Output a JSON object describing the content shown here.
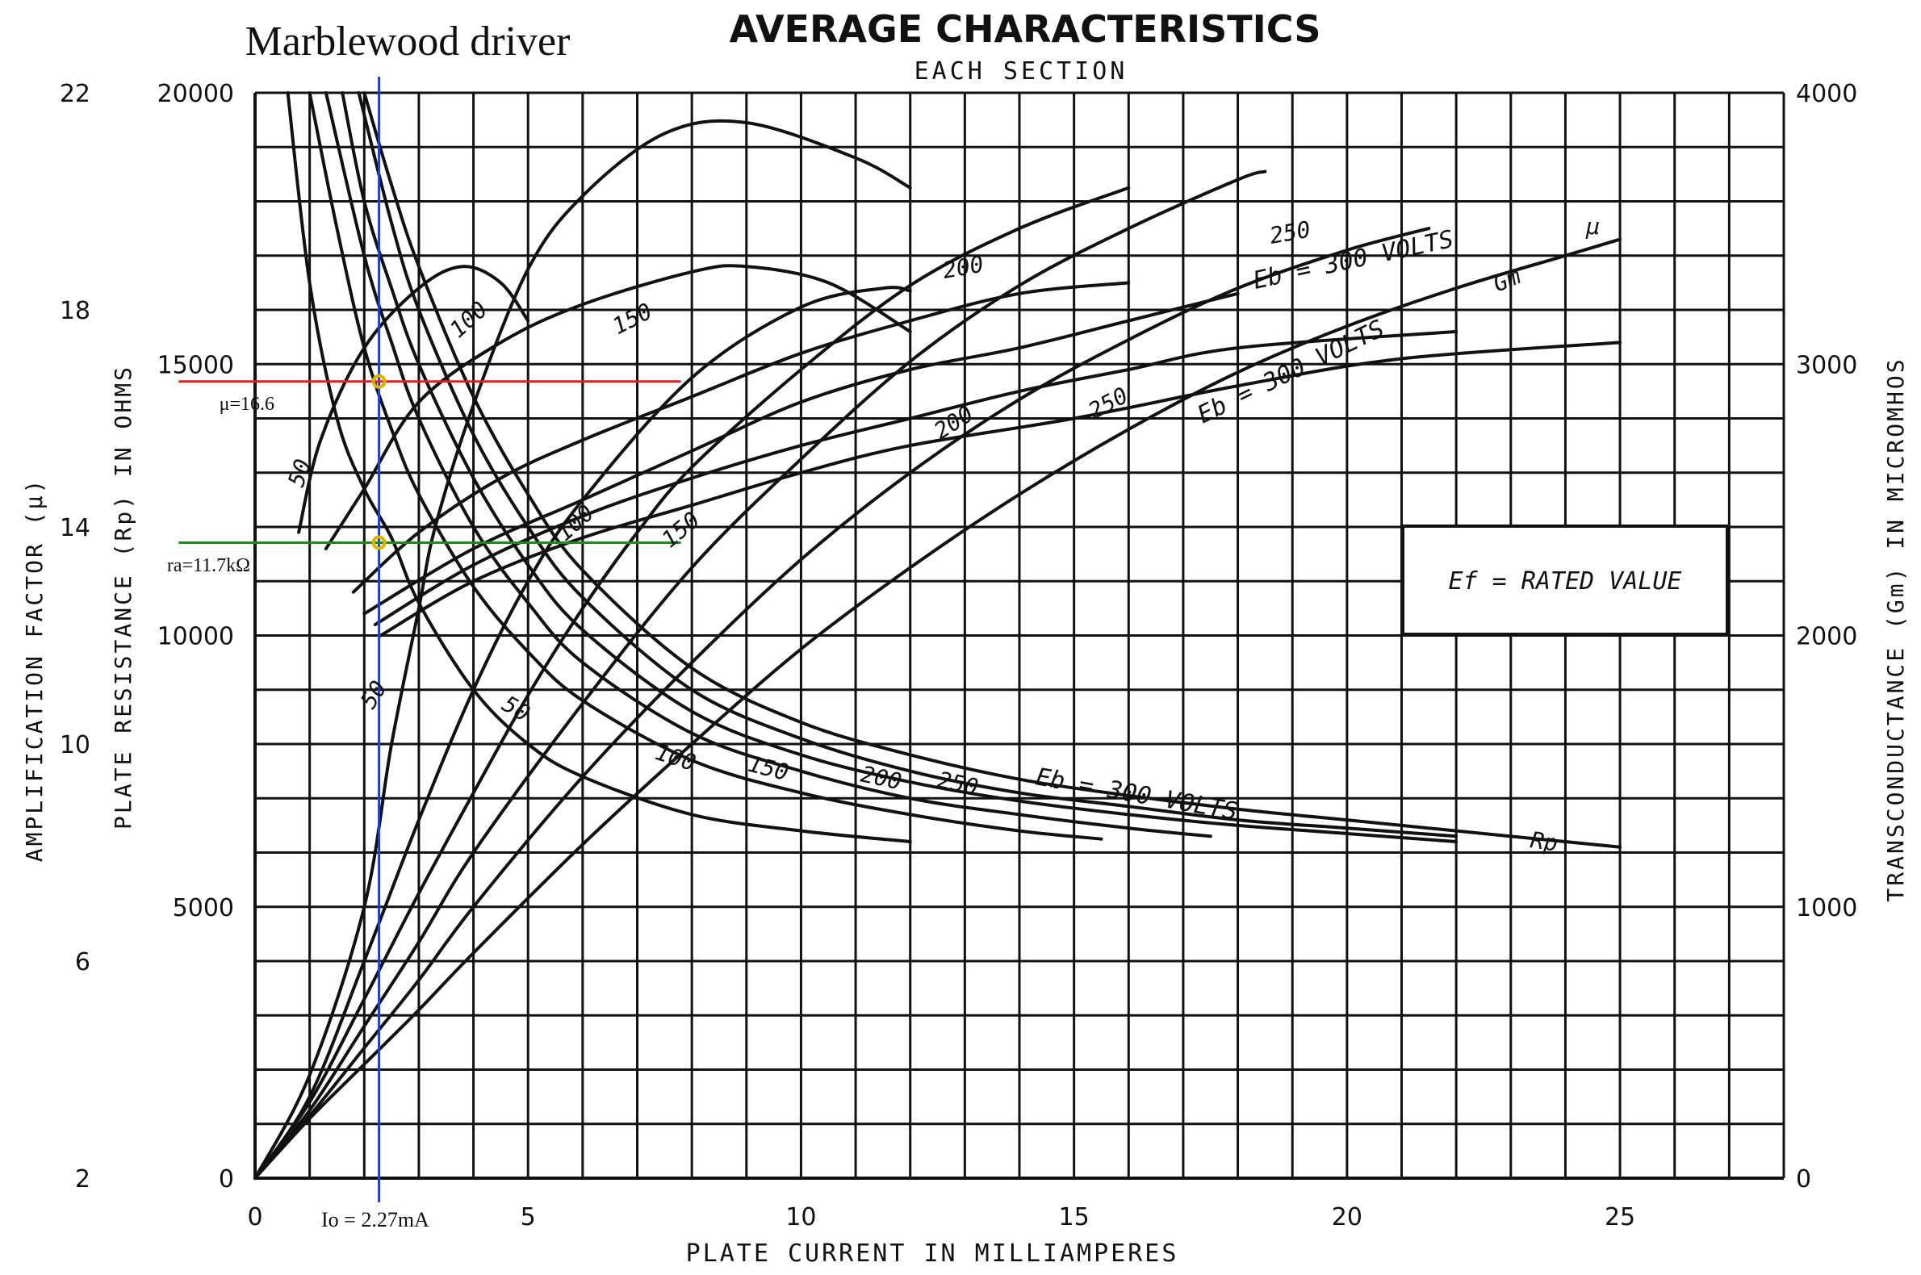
{
  "chart_data": {
    "type": "line",
    "title": "AVERAGE CHARACTERISTICS",
    "subtitle": "EACH SECTION",
    "annotation_title": "Marblewood driver",
    "xlabel": "PLATE CURRENT IN MILLIAMPERES",
    "ylabel_mu": "AMPLIFICATION FACTOR (μ)",
    "ylabel_rp": "PLATE RESISTANCE (Rp) IN OHMS",
    "ylabel_gm": "TRANSCONDUCTANCE (Gm) IN MICROMHOS",
    "xlim": [
      0,
      28
    ],
    "ylim_rp": [
      0,
      20000
    ],
    "ylim_mu": [
      2,
      22
    ],
    "ylim_gm": [
      0,
      4000
    ],
    "grid": true,
    "x_ticks": [
      "0",
      "5",
      "10",
      "15",
      "20",
      "25"
    ],
    "rp_ticks": [
      "0",
      "5000",
      "10000",
      "15000",
      "20000"
    ],
    "mu_ticks": [
      "2",
      "6",
      "10",
      "14",
      "18",
      "22"
    ],
    "gm_ticks": [
      "0",
      "1000",
      "2000",
      "3000",
      "4000"
    ],
    "condition_box": "Ef = RATED VALUE",
    "family_labels": {
      "mu": "μ",
      "gm": "Gm",
      "rp": "Rp",
      "mu_eb": "Eb = 300 VOLTS",
      "gm_eb": "Eb = 300 VOLTS",
      "rp_eb": "Eb = 300 VOLTS"
    },
    "series": [
      {
        "family": "mu",
        "label": "50",
        "points": [
          [
            0.8,
            13.9
          ],
          [
            1.2,
            15.6
          ],
          [
            2,
            17.3
          ],
          [
            3,
            18.4
          ],
          [
            3.8,
            18.8
          ],
          [
            4.5,
            18.5
          ],
          [
            5,
            17.8
          ]
        ]
      },
      {
        "family": "mu",
        "label": "100",
        "points": [
          [
            1.3,
            13.6
          ],
          [
            2,
            14.7
          ],
          [
            3,
            16.3
          ],
          [
            4.5,
            17.4
          ],
          [
            6,
            18.1
          ],
          [
            8,
            18.7
          ],
          [
            9,
            18.8
          ],
          [
            10.5,
            18.5
          ],
          [
            12,
            17.6
          ]
        ]
      },
      {
        "family": "mu",
        "label": "150",
        "points": [
          [
            1.8,
            12.8
          ],
          [
            3,
            13.9
          ],
          [
            4.5,
            14.9
          ],
          [
            6,
            15.6
          ],
          [
            8,
            16.4
          ],
          [
            10,
            17.2
          ],
          [
            12,
            17.8
          ],
          [
            14,
            18.3
          ],
          [
            16,
            18.5
          ]
        ]
      },
      {
        "family": "mu",
        "label": "200",
        "points": [
          [
            2,
            12.4
          ],
          [
            4,
            13.6
          ],
          [
            6,
            14.5
          ],
          [
            8,
            15.4
          ],
          [
            10,
            16.3
          ],
          [
            12,
            16.9
          ],
          [
            14,
            17.3
          ],
          [
            16,
            17.8
          ],
          [
            18,
            18.3
          ]
        ]
      },
      {
        "family": "mu",
        "label": "250",
        "points": [
          [
            2.2,
            12.2
          ],
          [
            4,
            13.3
          ],
          [
            6,
            14.2
          ],
          [
            8,
            14.9
          ],
          [
            10,
            15.5
          ],
          [
            12,
            16.0
          ],
          [
            14,
            16.5
          ],
          [
            16,
            16.9
          ],
          [
            18,
            17.3
          ],
          [
            22,
            17.6
          ]
        ]
      },
      {
        "family": "mu",
        "label": "300",
        "points": [
          [
            2.3,
            12.0
          ],
          [
            4,
            13.0
          ],
          [
            6,
            13.8
          ],
          [
            8,
            14.4
          ],
          [
            10,
            15.0
          ],
          [
            12,
            15.5
          ],
          [
            15,
            16.0
          ],
          [
            18,
            16.6
          ],
          [
            21,
            17.1
          ],
          [
            25,
            17.4
          ]
        ]
      },
      {
        "family": "gm",
        "label": "50",
        "points": [
          [
            0,
            0
          ],
          [
            1,
            380
          ],
          [
            2,
            1000
          ],
          [
            2.5,
            1600
          ],
          [
            3,
            2100
          ],
          [
            3.3,
            2400
          ],
          [
            4,
            2850
          ],
          [
            5,
            3350
          ],
          [
            6,
            3620
          ],
          [
            7.5,
            3850
          ],
          [
            9,
            3890
          ],
          [
            11,
            3760
          ],
          [
            12,
            3650
          ]
        ]
      },
      {
        "family": "gm",
        "label": "100",
        "points": [
          [
            0,
            0
          ],
          [
            1,
            300
          ],
          [
            2,
            800
          ],
          [
            3,
            1320
          ],
          [
            4,
            1800
          ],
          [
            5,
            2200
          ],
          [
            6,
            2500
          ],
          [
            8,
            2950
          ],
          [
            10,
            3210
          ],
          [
            11.5,
            3280
          ],
          [
            12,
            3270
          ]
        ]
      },
      {
        "family": "gm",
        "label": "150",
        "points": [
          [
            0,
            0
          ],
          [
            1,
            280
          ],
          [
            2,
            660
          ],
          [
            3,
            1050
          ],
          [
            4,
            1420
          ],
          [
            5,
            1780
          ],
          [
            6,
            2100
          ],
          [
            7,
            2380
          ],
          [
            8,
            2620
          ],
          [
            10,
            2980
          ],
          [
            12,
            3290
          ],
          [
            14,
            3500
          ],
          [
            16,
            3650
          ]
        ]
      },
      {
        "family": "gm",
        "label": "200",
        "points": [
          [
            0,
            0
          ],
          [
            1,
            250
          ],
          [
            2,
            560
          ],
          [
            3,
            870
          ],
          [
            4,
            1200
          ],
          [
            6,
            1750
          ],
          [
            8,
            2250
          ],
          [
            10,
            2650
          ],
          [
            12,
            3010
          ],
          [
            14,
            3290
          ],
          [
            16,
            3500
          ],
          [
            18,
            3680
          ],
          [
            18.5,
            3710
          ]
        ]
      },
      {
        "family": "gm",
        "label": "250",
        "points": [
          [
            0,
            0
          ],
          [
            1,
            230
          ],
          [
            2,
            480
          ],
          [
            3,
            730
          ],
          [
            4,
            1000
          ],
          [
            6,
            1480
          ],
          [
            8,
            1900
          ],
          [
            10,
            2280
          ],
          [
            12,
            2600
          ],
          [
            14,
            2870
          ],
          [
            16,
            3090
          ],
          [
            18,
            3280
          ],
          [
            20,
            3420
          ],
          [
            21.5,
            3500
          ]
        ]
      },
      {
        "family": "gm",
        "label": "300",
        "points": [
          [
            0,
            0
          ],
          [
            1,
            220
          ],
          [
            2,
            420
          ],
          [
            3,
            620
          ],
          [
            4,
            830
          ],
          [
            6,
            1230
          ],
          [
            8,
            1600
          ],
          [
            10,
            1950
          ],
          [
            12,
            2250
          ],
          [
            14,
            2520
          ],
          [
            16,
            2760
          ],
          [
            18,
            2970
          ],
          [
            20,
            3140
          ],
          [
            22,
            3280
          ],
          [
            24,
            3400
          ],
          [
            25,
            3460
          ]
        ]
      },
      {
        "family": "rp",
        "label": "50",
        "points": [
          [
            0.6,
            20000
          ],
          [
            1,
            16500
          ],
          [
            1.5,
            14000
          ],
          [
            2,
            12700
          ],
          [
            2.5,
            11800
          ],
          [
            3,
            10600
          ],
          [
            4,
            9000
          ],
          [
            5,
            8000
          ],
          [
            6,
            7400
          ],
          [
            8,
            6700
          ],
          [
            10,
            6400
          ],
          [
            12,
            6200
          ]
        ]
      },
      {
        "family": "rp",
        "label": "100",
        "points": [
          [
            1,
            20000
          ],
          [
            1.5,
            17500
          ],
          [
            2,
            15300
          ],
          [
            2.5,
            13800
          ],
          [
            3,
            12600
          ],
          [
            4,
            10900
          ],
          [
            5,
            9700
          ],
          [
            6,
            8800
          ],
          [
            8,
            7700
          ],
          [
            10,
            7100
          ],
          [
            12,
            6700
          ],
          [
            14,
            6400
          ],
          [
            15.5,
            6250
          ]
        ]
      },
      {
        "family": "rp",
        "label": "150",
        "points": [
          [
            1.3,
            20000
          ],
          [
            2,
            17000
          ],
          [
            2.5,
            15400
          ],
          [
            3,
            14000
          ],
          [
            4,
            12000
          ],
          [
            5,
            10600
          ],
          [
            6,
            9500
          ],
          [
            8,
            8200
          ],
          [
            10,
            7500
          ],
          [
            12,
            7000
          ],
          [
            14,
            6700
          ],
          [
            16,
            6450
          ],
          [
            17.5,
            6300
          ]
        ]
      },
      {
        "family": "rp",
        "label": "200",
        "points": [
          [
            1.6,
            20000
          ],
          [
            2,
            18000
          ],
          [
            2.5,
            16400
          ],
          [
            3,
            15000
          ],
          [
            4,
            12900
          ],
          [
            5,
            11300
          ],
          [
            6,
            10100
          ],
          [
            8,
            8600
          ],
          [
            10,
            7800
          ],
          [
            12,
            7300
          ],
          [
            14,
            6950
          ],
          [
            16,
            6700
          ],
          [
            18,
            6500
          ],
          [
            20,
            6350
          ],
          [
            22,
            6200
          ]
        ]
      },
      {
        "family": "rp",
        "label": "250",
        "points": [
          [
            1.9,
            20000
          ],
          [
            2.5,
            17600
          ],
          [
            3,
            16000
          ],
          [
            4,
            13700
          ],
          [
            5,
            12000
          ],
          [
            6,
            10700
          ],
          [
            8,
            9000
          ],
          [
            10,
            8100
          ],
          [
            12,
            7500
          ],
          [
            14,
            7100
          ],
          [
            16,
            6850
          ],
          [
            18,
            6600
          ],
          [
            20,
            6450
          ],
          [
            22,
            6300
          ]
        ]
      },
      {
        "family": "rp",
        "label": "300",
        "points": [
          [
            2,
            20000
          ],
          [
            2.5,
            18300
          ],
          [
            3,
            16800
          ],
          [
            4,
            14400
          ],
          [
            5,
            12600
          ],
          [
            6,
            11200
          ],
          [
            8,
            9400
          ],
          [
            10,
            8400
          ],
          [
            12,
            7800
          ],
          [
            14,
            7350
          ],
          [
            16,
            7050
          ],
          [
            18,
            6800
          ],
          [
            20,
            6600
          ],
          [
            22,
            6400
          ],
          [
            24,
            6200
          ],
          [
            25,
            6100
          ]
        ]
      }
    ],
    "annotations": [
      {
        "label": "Io = 2.27mA",
        "x": 2.27,
        "color": "#1f3fd8"
      },
      {
        "label": "μ=16.6",
        "rp": 14680,
        "x_from": -1.4,
        "x_to": 7.8,
        "color": "#e02020"
      },
      {
        "label": "ra=11.7kΩ",
        "rp": 11710,
        "x_from": -1.4,
        "x_to": 7.8,
        "color": "#1a8c1a"
      }
    ],
    "marker_color": "#d9b400"
  }
}
